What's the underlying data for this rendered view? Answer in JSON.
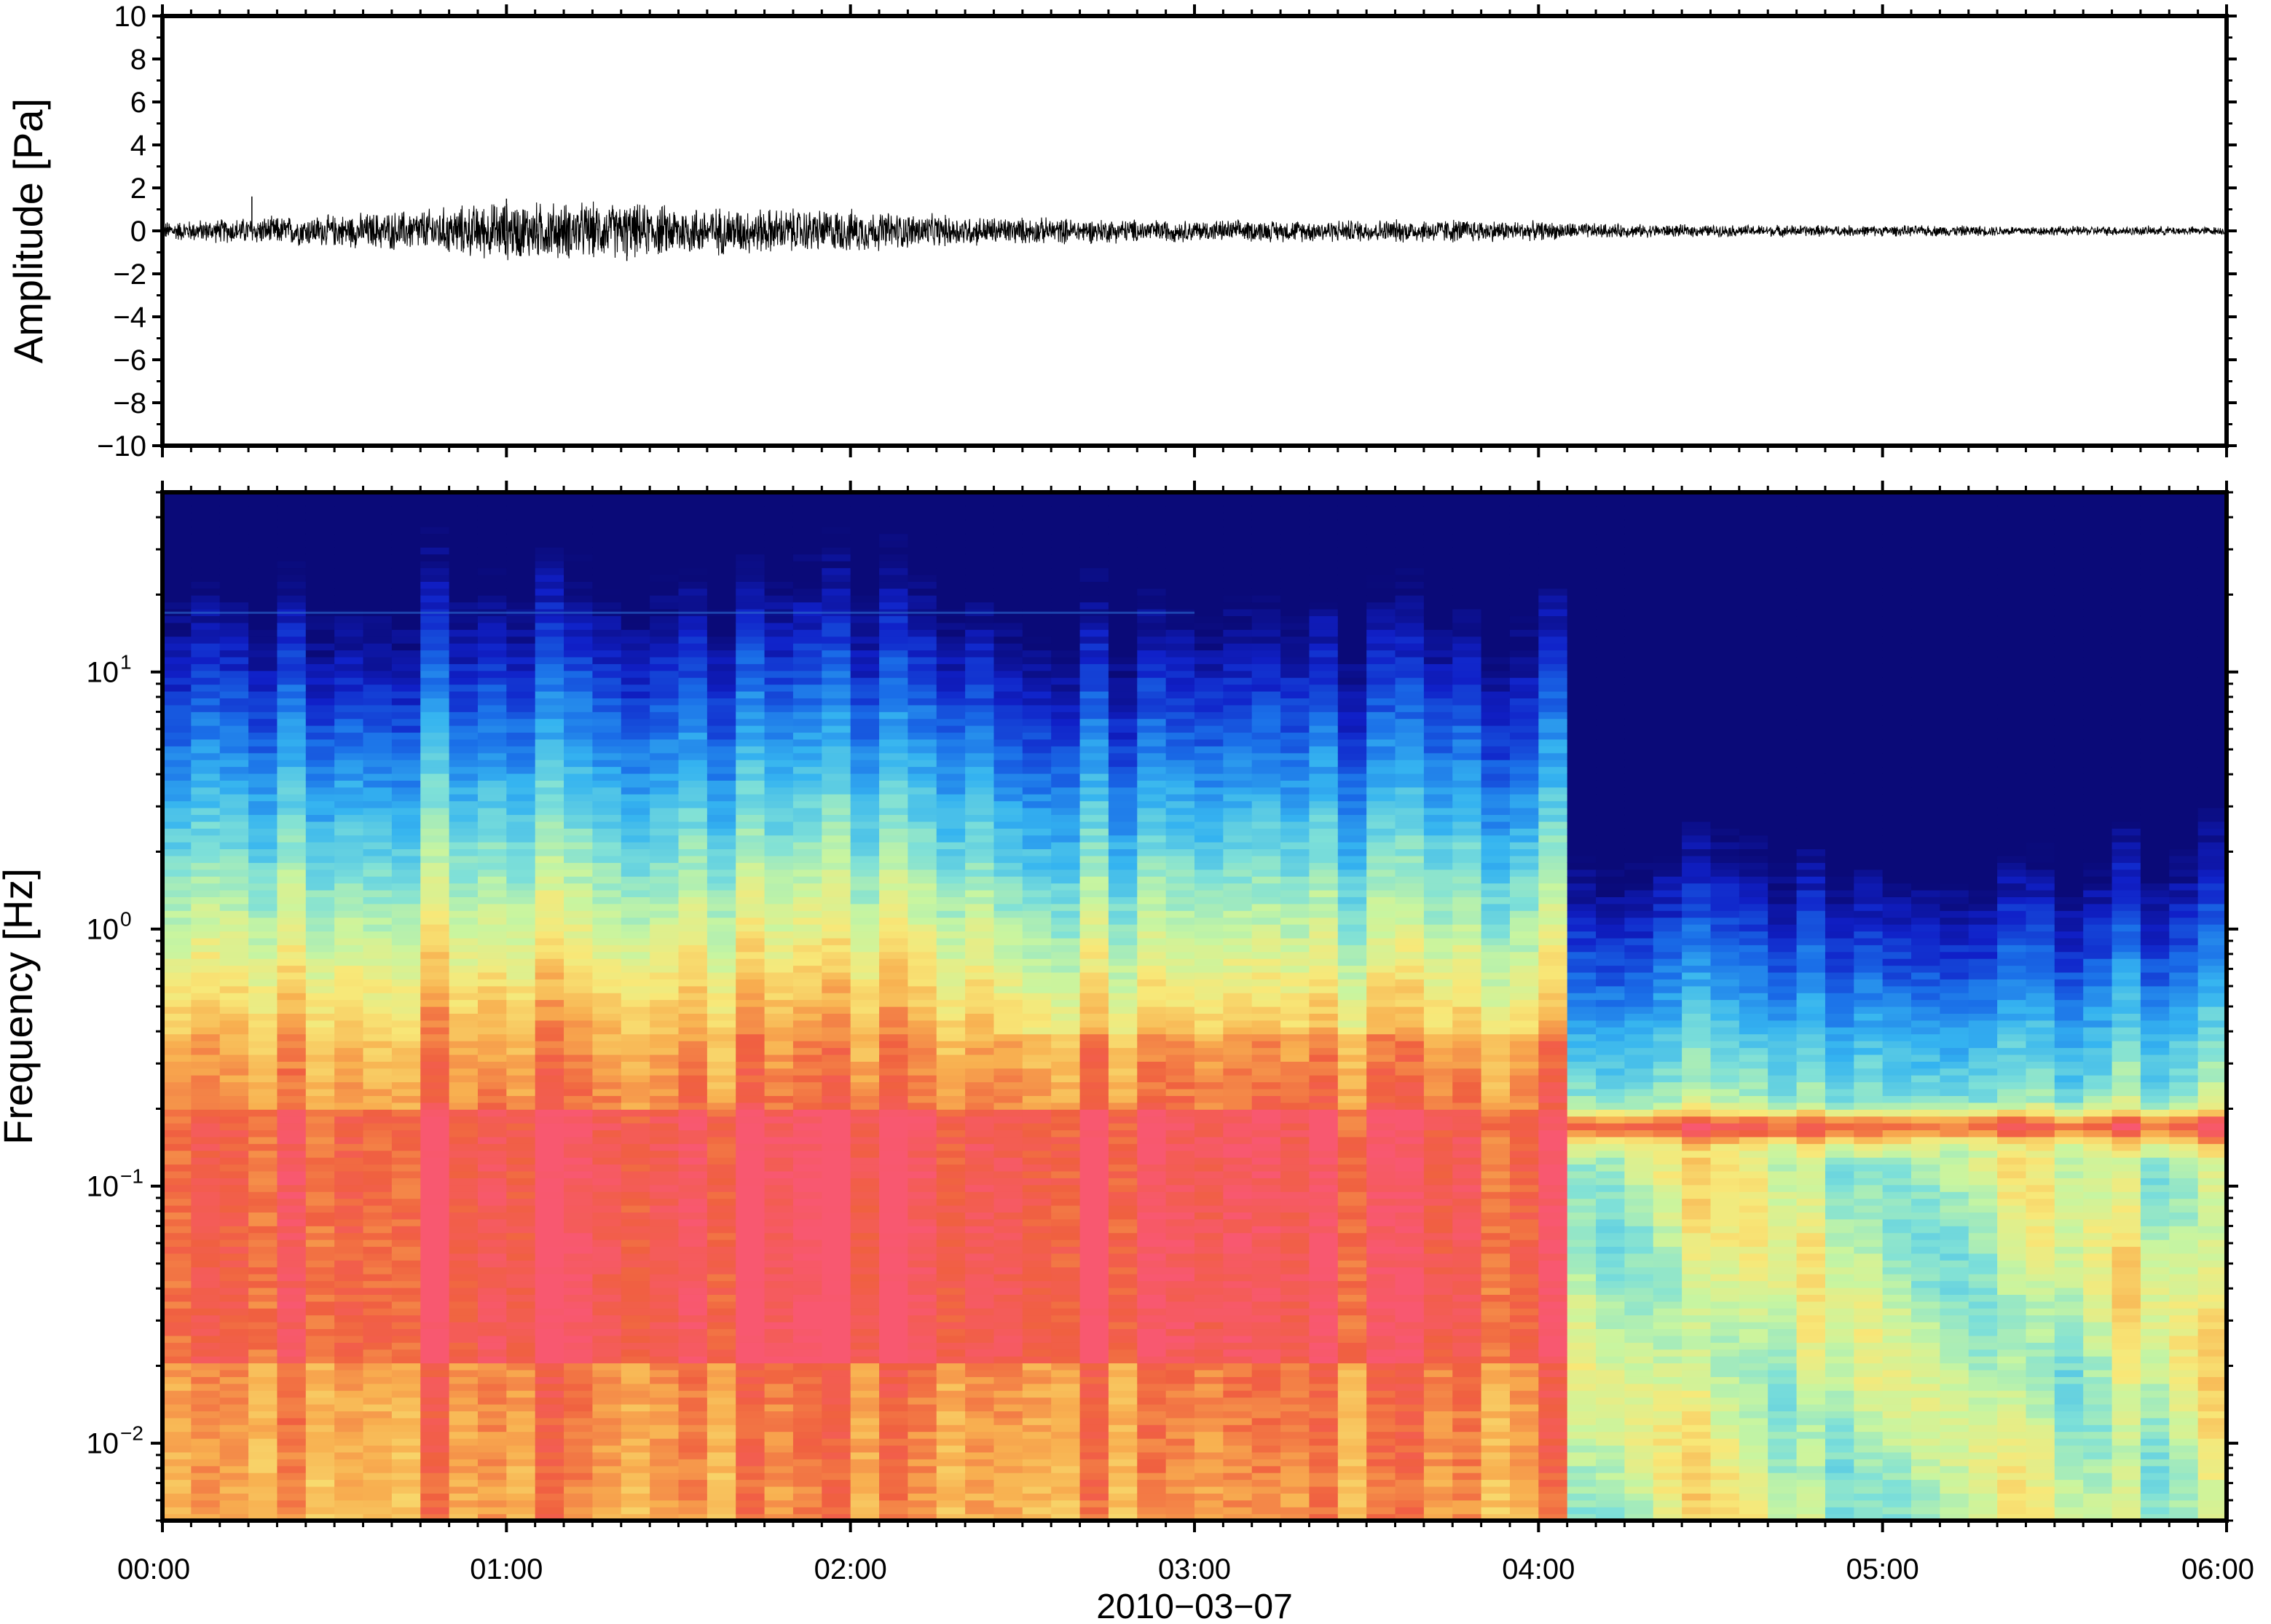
{
  "chart_data": [
    {
      "type": "line",
      "ylabel": "Amplitude [Pa]",
      "ylim": [
        -10,
        10
      ],
      "yticks": [
        "10",
        "8",
        "6",
        "4",
        "2",
        "0",
        "−2",
        "−4",
        "−6",
        "−8",
        "−10"
      ],
      "ytick_values": [
        10,
        8,
        6,
        4,
        2,
        0,
        -2,
        -4,
        -6,
        -8,
        -10
      ],
      "xlim_hours": [
        0,
        6
      ],
      "series": [
        {
          "x_hours": [
            0,
            0.25,
            0.5,
            0.75,
            1,
            1.25,
            1.5,
            1.75,
            2,
            2.25,
            2.5,
            2.75,
            3,
            3.25,
            3.5,
            3.75,
            4,
            4.25,
            4.5,
            4.75,
            5,
            5.25,
            5.5,
            5.75,
            6
          ],
          "envelope_pa": [
            0.35,
            0.5,
            0.6,
            0.8,
            1.1,
            1.05,
            0.95,
            0.85,
            0.8,
            0.6,
            0.5,
            0.45,
            0.4,
            0.4,
            0.42,
            0.45,
            0.35,
            0.25,
            0.22,
            0.22,
            0.2,
            0.2,
            0.18,
            0.18,
            0.15
          ],
          "spikes": [
            {
              "x_hours": 0.26,
              "y_pa": 1.6
            },
            {
              "x_hours": 1.35,
              "y_pa": -1.4
            },
            {
              "x_hours": 1.0,
              "y_pa": 1.5
            }
          ]
        }
      ]
    },
    {
      "type": "heatmap",
      "ylabel": "Frequency [Hz]",
      "xlabel": "2010−03−07",
      "yscale": "log",
      "ylim": [
        0.005,
        50
      ],
      "yticks": [
        {
          "value": 10,
          "base": "10",
          "exp": "1"
        },
        {
          "value": 1,
          "base": "10",
          "exp": "0"
        },
        {
          "value": 0.1,
          "base": "10",
          "exp": "−1"
        },
        {
          "value": 0.01,
          "base": "10",
          "exp": "−2"
        }
      ],
      "xticks": [
        "00:00",
        "01:00",
        "02:00",
        "03:00",
        "04:00",
        "05:00",
        "06:00"
      ],
      "xtick_values_hours": [
        0,
        1,
        2,
        3,
        4,
        5,
        6
      ],
      "colormap": [
        "#0a0a78",
        "#1020c8",
        "#1a6ee8",
        "#35b4f0",
        "#7ee0d8",
        "#c8f5a0",
        "#f8e878",
        "#f8b050",
        "#f06040",
        "#f85870"
      ],
      "power_description": {
        "before_04h": "energy concentrated between 0.02 and 0.3 Hz, spreading up to about 10 Hz",
        "after_04h": "narrow band near 0.17 Hz, weak energy above 1 Hz",
        "line_hz": 17
      }
    }
  ]
}
